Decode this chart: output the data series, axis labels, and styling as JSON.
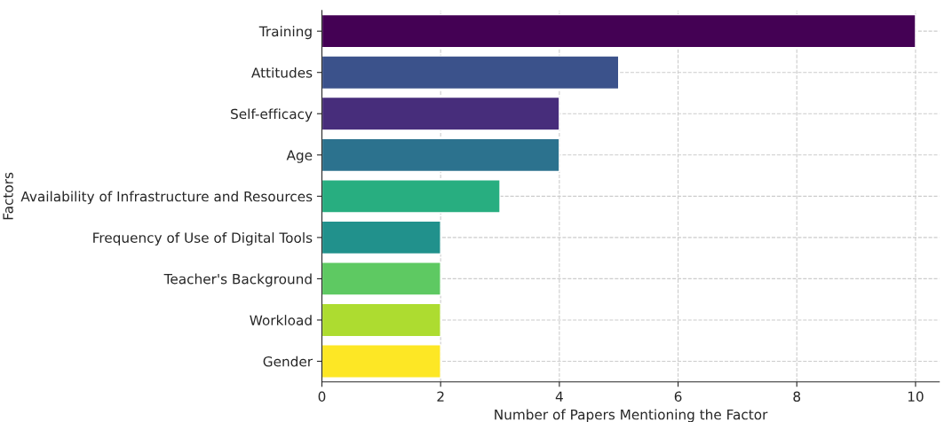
{
  "chart_data": {
    "type": "bar",
    "orientation": "horizontal",
    "xlabel": "Number of Papers Mentioning the Factor",
    "ylabel": "Factors",
    "categories": [
      "Training",
      "Attitudes",
      "Self-efficacy",
      "Age",
      "Availability of Infrastructure and Resources",
      "Frequency of Use of Digital Tools",
      "Teacher's Background",
      "Workload",
      "Gender"
    ],
    "values": [
      10,
      5,
      4,
      4,
      3,
      2,
      2,
      2,
      2
    ],
    "colors": [
      "#440154",
      "#3b528b",
      "#472d7b",
      "#2c728e",
      "#28ae80",
      "#21918c",
      "#5ec962",
      "#addc30",
      "#fde725"
    ],
    "xlim": [
      0,
      10.4
    ],
    "xticks": [
      0,
      2,
      4,
      6,
      8,
      10
    ],
    "grid": true
  }
}
